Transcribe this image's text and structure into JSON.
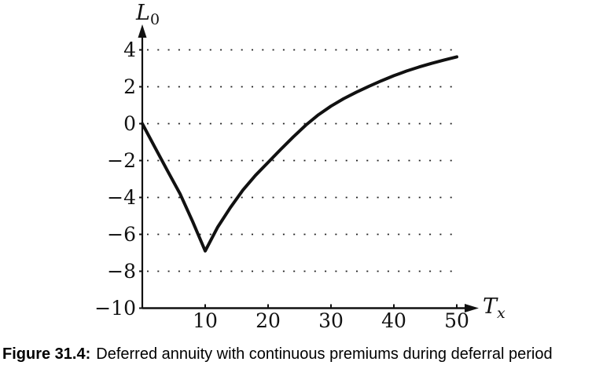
{
  "figure": {
    "caption_label": "Figure 31.4:",
    "caption_text": "Deferred annuity with continuous premiums during deferral period"
  },
  "chart_data": {
    "type": "line",
    "title": "Figure 31.4: Deferred annuity with continuous premiums during deferral period",
    "xlabel": "T_x",
    "ylabel": "L_0",
    "xlabel_main": "T",
    "xlabel_sub": "x",
    "ylabel_main": "L",
    "ylabel_sub": "0",
    "xlim": [
      0,
      53
    ],
    "ylim": [
      -10,
      5.5
    ],
    "xticks": [
      10,
      20,
      30,
      40,
      50
    ],
    "yticks": [
      4,
      2,
      0,
      -2,
      -4,
      -6,
      -8,
      -10
    ],
    "gridlines_y": [
      4,
      2,
      0,
      -2,
      -4,
      -6,
      -8
    ],
    "grid_style": "dotted",
    "legend_position": "none",
    "background_color": "#ffffff",
    "axis_color": "#111111",
    "grid_color": "#222222",
    "line_color": "#111111",
    "series": [
      {
        "name": "L0",
        "x": [
          0,
          2,
          4,
          6,
          8,
          10,
          12,
          14,
          16,
          18,
          20,
          22,
          24,
          26,
          28,
          30,
          32,
          34,
          36,
          38,
          40,
          42,
          44,
          46,
          48,
          50
        ],
        "y": [
          0,
          -1.28,
          -2.55,
          -3.8,
          -5.3,
          -6.9,
          -5.6,
          -4.55,
          -3.6,
          -2.8,
          -2.1,
          -1.4,
          -0.72,
          -0.08,
          0.48,
          0.95,
          1.35,
          1.7,
          2.02,
          2.32,
          2.6,
          2.85,
          3.07,
          3.27,
          3.45,
          3.62
        ]
      }
    ],
    "annotations": {
      "minimum_point": {
        "x": 10,
        "y": -6.9
      },
      "zero_crossings_x": [
        0,
        25.8
      ],
      "end_value": {
        "x": 50,
        "y": 3.6
      }
    }
  }
}
